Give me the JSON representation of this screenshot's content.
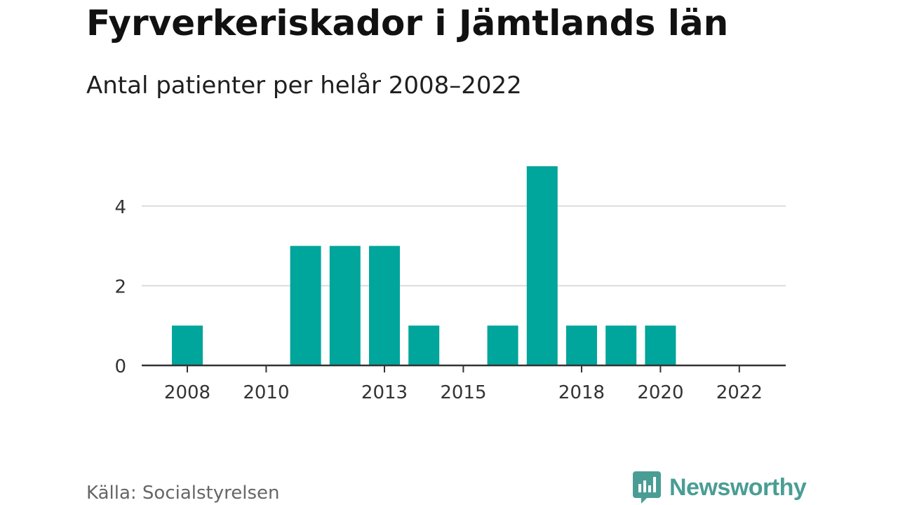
{
  "title": "Fyrverkeriskador i Jämtlands län",
  "subtitle": "Antal patienter per helår 2008–2022",
  "source": "Källa: Socialstyrelsen",
  "brand": {
    "name": "Newsworthy",
    "icon": "newsworthy-bar-chart-icon",
    "color": "#4a9d95"
  },
  "colors": {
    "bar": "#00a59b",
    "grid": "#dcdcdc",
    "axis": "#333333"
  },
  "chart_data": {
    "type": "bar",
    "x": [
      2008,
      2009,
      2010,
      2011,
      2012,
      2013,
      2014,
      2015,
      2016,
      2017,
      2018,
      2019,
      2020,
      2021,
      2022
    ],
    "values": [
      1,
      0,
      0,
      3,
      3,
      3,
      1,
      0,
      1,
      5,
      1,
      1,
      1,
      0,
      0
    ],
    "x_ticks": [
      "2008",
      "2010",
      "2013",
      "2015",
      "2018",
      "2020",
      "2022"
    ],
    "y_ticks": [
      "0",
      "2",
      "4"
    ],
    "ylim": [
      0,
      5
    ],
    "xlabel": "",
    "ylabel": "",
    "grid": true
  }
}
